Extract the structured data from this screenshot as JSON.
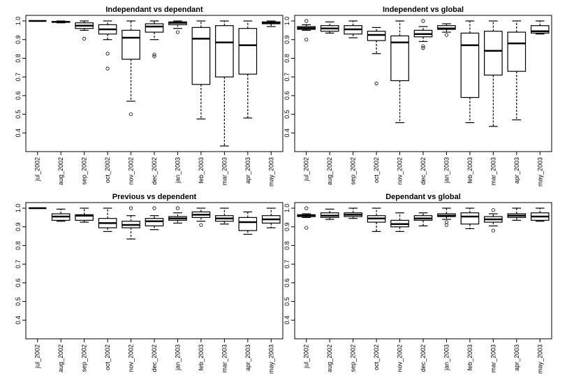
{
  "chart_data": [
    {
      "type": "box",
      "title": "Independant vs dependant",
      "categories": [
        "jul_2002",
        "aug_2002",
        "sep_2002",
        "oct_2002",
        "nov_2002",
        "dec_2002",
        "jan_2003",
        "feb_2003",
        "mar_2003",
        "apr_2003",
        "may_2003"
      ],
      "boxes": [
        {
          "min": 1.0,
          "q1": 1.0,
          "median": 1.0,
          "q3": 1.0,
          "max": 1.0,
          "outliers": []
        },
        {
          "min": 0.99,
          "q1": 0.993,
          "median": 0.995,
          "q3": 0.997,
          "max": 1.0,
          "outliers": []
        },
        {
          "min": 0.95,
          "q1": 0.96,
          "median": 0.975,
          "q3": 0.99,
          "max": 1.0,
          "outliers": [
            0.905
          ]
        },
        {
          "min": 0.9,
          "q1": 0.93,
          "median": 0.955,
          "q3": 0.98,
          "max": 1.0,
          "outliers": [
            0.825,
            0.745
          ]
        },
        {
          "min": 0.57,
          "q1": 0.795,
          "median": 0.91,
          "q3": 0.95,
          "max": 1.0,
          "outliers": [
            0.5
          ]
        },
        {
          "min": 0.9,
          "q1": 0.94,
          "median": 0.97,
          "q3": 0.985,
          "max": 1.0,
          "outliers": [
            0.82,
            0.81
          ]
        },
        {
          "min": 0.96,
          "q1": 0.98,
          "median": 0.99,
          "q3": 0.995,
          "max": 1.0,
          "outliers": [
            0.94
          ]
        },
        {
          "min": 0.475,
          "q1": 0.66,
          "median": 0.905,
          "q3": 0.965,
          "max": 1.0,
          "outliers": []
        },
        {
          "min": 0.33,
          "q1": 0.7,
          "median": 0.885,
          "q3": 0.975,
          "max": 1.0,
          "outliers": []
        },
        {
          "min": 0.48,
          "q1": 0.715,
          "median": 0.87,
          "q3": 0.96,
          "max": 1.0,
          "outliers": []
        },
        {
          "min": 0.97,
          "q1": 0.985,
          "median": 0.99,
          "q3": 0.995,
          "max": 1.0,
          "outliers": []
        }
      ],
      "ylim": [
        0.3,
        1.03
      ],
      "yticks": [
        0.4,
        0.5,
        0.6,
        0.7,
        0.8,
        0.9,
        {
          "value": 1,
          "label": "1.0"
        }
      ]
    },
    {
      "type": "box",
      "title": "Independent vs global",
      "categories": [
        "jul_2002",
        "aug_2002",
        "sep_2002",
        "oct_2002",
        "nov_2002",
        "dec_2002",
        "jan_2003",
        "feb_2003",
        "mar_2003",
        "apr_2003",
        "may_2003"
      ],
      "boxes": [
        {
          "min": 0.95,
          "q1": 0.955,
          "median": 0.962,
          "q3": 0.97,
          "max": 0.98,
          "outliers": [
            1.0,
            0.9
          ]
        },
        {
          "min": 0.935,
          "q1": 0.945,
          "median": 0.96,
          "q3": 0.975,
          "max": 0.995,
          "outliers": []
        },
        {
          "min": 0.91,
          "q1": 0.93,
          "median": 0.955,
          "q3": 0.975,
          "max": 1.0,
          "outliers": []
        },
        {
          "min": 0.825,
          "q1": 0.895,
          "median": 0.925,
          "q3": 0.945,
          "max": 0.965,
          "outliers": [
            0.665
          ]
        },
        {
          "min": 0.455,
          "q1": 0.68,
          "median": 0.885,
          "q3": 0.92,
          "max": 1.0,
          "outliers": []
        },
        {
          "min": 0.89,
          "q1": 0.915,
          "median": 0.93,
          "q3": 0.95,
          "max": 0.97,
          "outliers": [
            1.0,
            0.865,
            0.855
          ]
        },
        {
          "min": 0.94,
          "q1": 0.955,
          "median": 0.96,
          "q3": 0.975,
          "max": 0.985,
          "outliers": [
            0.925
          ]
        },
        {
          "min": 0.455,
          "q1": 0.59,
          "median": 0.87,
          "q3": 0.935,
          "max": 1.0,
          "outliers": []
        },
        {
          "min": 0.435,
          "q1": 0.71,
          "median": 0.84,
          "q3": 0.945,
          "max": 1.0,
          "outliers": []
        },
        {
          "min": 0.47,
          "q1": 0.73,
          "median": 0.88,
          "q3": 0.94,
          "max": 1.0,
          "outliers": []
        },
        {
          "min": 0.93,
          "q1": 0.935,
          "median": 0.945,
          "q3": 0.975,
          "max": 1.0,
          "outliers": []
        }
      ],
      "ylim": [
        0.3,
        1.03
      ],
      "yticks": [
        0.4,
        0.5,
        0.6,
        0.7,
        0.8,
        0.9,
        {
          "value": 1,
          "label": "1.0"
        }
      ]
    },
    {
      "type": "box",
      "title": "Previous vs dependent",
      "categories": [
        "jul_2002",
        "aug_2002",
        "sep_2002",
        "oct_2002",
        "nov_2002",
        "dec_2002",
        "jan_2003",
        "feb_2003",
        "mar_2003",
        "apr_2003",
        "may_2003"
      ],
      "boxes": [
        {
          "min": 1.0,
          "q1": 1.0,
          "median": 1.0,
          "q3": 1.0,
          "max": 1.0,
          "outliers": []
        },
        {
          "min": 0.93,
          "q1": 0.935,
          "median": 0.955,
          "q3": 0.97,
          "max": 0.995,
          "outliers": []
        },
        {
          "min": 0.925,
          "q1": 0.935,
          "median": 0.96,
          "q3": 0.965,
          "max": 1.0,
          "outliers": []
        },
        {
          "min": 0.875,
          "q1": 0.895,
          "median": 0.92,
          "q3": 0.945,
          "max": 1.0,
          "outliers": []
        },
        {
          "min": 0.835,
          "q1": 0.895,
          "median": 0.91,
          "q3": 0.93,
          "max": 0.96,
          "outliers": [
            1.0
          ]
        },
        {
          "min": 0.885,
          "q1": 0.905,
          "median": 0.93,
          "q3": 0.945,
          "max": 0.96,
          "outliers": [
            1.0
          ]
        },
        {
          "min": 0.92,
          "q1": 0.935,
          "median": 0.945,
          "q3": 0.955,
          "max": 0.975,
          "outliers": [
            1.0
          ]
        },
        {
          "min": 0.93,
          "q1": 0.95,
          "median": 0.965,
          "q3": 0.98,
          "max": 1.0,
          "outliers": [
            0.91
          ]
        },
        {
          "min": 0.915,
          "q1": 0.93,
          "median": 0.945,
          "q3": 0.96,
          "max": 1.0,
          "outliers": []
        },
        {
          "min": 0.86,
          "q1": 0.88,
          "median": 0.925,
          "q3": 0.95,
          "max": 0.98,
          "outliers": []
        },
        {
          "min": 0.895,
          "q1": 0.92,
          "median": 0.94,
          "q3": 0.96,
          "max": 1.0,
          "outliers": []
        }
      ],
      "ylim": [
        0.3,
        1.03
      ],
      "yticks": [
        0.4,
        0.5,
        0.6,
        0.7,
        0.8,
        0.9,
        {
          "value": 1,
          "label": "1.0"
        }
      ]
    },
    {
      "type": "box",
      "title": "Dependant vs global",
      "categories": [
        "jul_2002",
        "aug_2002",
        "sep_2002",
        "oct_2002",
        "nov_2002",
        "dec_2002",
        "jan_2003",
        "feb_2003",
        "mar_2003",
        "apr_2003",
        "may_2003"
      ],
      "boxes": [
        {
          "min": 0.95,
          "q1": 0.955,
          "median": 0.96,
          "q3": 0.965,
          "max": 0.97,
          "outliers": [
            1.0,
            0.895
          ]
        },
        {
          "min": 0.94,
          "q1": 0.95,
          "median": 0.96,
          "q3": 0.975,
          "max": 0.995,
          "outliers": []
        },
        {
          "min": 0.945,
          "q1": 0.955,
          "median": 0.965,
          "q3": 0.975,
          "max": 1.0,
          "outliers": []
        },
        {
          "min": 0.875,
          "q1": 0.925,
          "median": 0.945,
          "q3": 0.96,
          "max": 1.0,
          "outliers": []
        },
        {
          "min": 0.875,
          "q1": 0.9,
          "median": 0.915,
          "q3": 0.935,
          "max": 0.975,
          "outliers": []
        },
        {
          "min": 0.905,
          "q1": 0.935,
          "median": 0.945,
          "q3": 0.96,
          "max": 0.975,
          "outliers": []
        },
        {
          "min": 0.94,
          "q1": 0.955,
          "median": 0.96,
          "q3": 0.97,
          "max": 1.0,
          "outliers": [
            0.925,
            0.91
          ]
        },
        {
          "min": 0.89,
          "q1": 0.915,
          "median": 0.955,
          "q3": 0.975,
          "max": 1.0,
          "outliers": []
        },
        {
          "min": 0.905,
          "q1": 0.925,
          "median": 0.94,
          "q3": 0.955,
          "max": 0.97,
          "outliers": [
            0.99,
            0.88
          ]
        },
        {
          "min": 0.935,
          "q1": 0.95,
          "median": 0.96,
          "q3": 0.97,
          "max": 1.0,
          "outliers": []
        },
        {
          "min": 0.93,
          "q1": 0.935,
          "median": 0.955,
          "q3": 0.975,
          "max": 1.0,
          "outliers": []
        }
      ],
      "ylim": [
        0.3,
        1.03
      ],
      "yticks": [
        0.4,
        0.5,
        0.6,
        0.7,
        0.8,
        0.9,
        {
          "value": 1,
          "label": "1.0"
        }
      ]
    }
  ]
}
